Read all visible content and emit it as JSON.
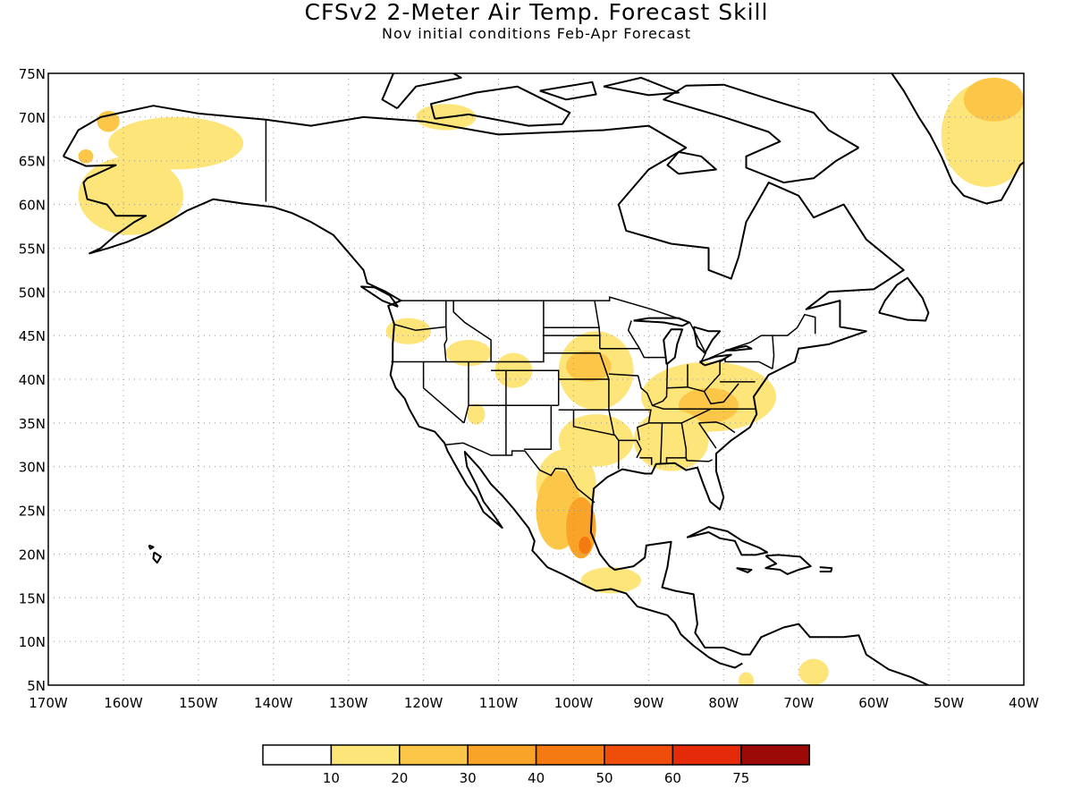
{
  "title": "CFSv2 2-Meter Air Temp. Forecast Skill",
  "subtitle": "Nov initial conditions   Feb-Apr Forecast",
  "lat_labels": [
    "75N",
    "70N",
    "65N",
    "60N",
    "55N",
    "50N",
    "45N",
    "40N",
    "35N",
    "30N",
    "25N",
    "20N",
    "15N",
    "10N",
    "5N"
  ],
  "lon_labels": [
    "170W",
    "160W",
    "150W",
    "140W",
    "130W",
    "120W",
    "110W",
    "100W",
    "90W",
    "80W",
    "70W",
    "60W",
    "50W",
    "40W"
  ],
  "map": {
    "lat_range": [
      5,
      75
    ],
    "lon_range": [
      -170,
      -40
    ],
    "gridlines": "dotted"
  },
  "colorbar": {
    "colors": [
      "#ffffff",
      "#fde57a",
      "#fcc648",
      "#f9a428",
      "#f57a12",
      "#ef4e0a",
      "#e52a0a",
      "#c21208",
      "#9b0a06"
    ],
    "labels": [
      "10",
      "20",
      "30",
      "40",
      "50",
      "60",
      "75"
    ]
  },
  "skill_regions": [
    {
      "level": 1,
      "lat": 61,
      "lon": -159,
      "rlat": 4.5,
      "rlon": 7
    },
    {
      "level": 1,
      "lat": 67,
      "lon": -153,
      "rlat": 3,
      "rlon": 9
    },
    {
      "level": 2,
      "lat": 69.5,
      "lon": -162,
      "rlat": 1.2,
      "rlon": 1.5
    },
    {
      "level": 2,
      "lat": 65.5,
      "lon": -165,
      "rlat": 0.8,
      "rlon": 1
    },
    {
      "level": 1,
      "lat": 70,
      "lon": -117,
      "rlat": 1.5,
      "rlon": 4
    },
    {
      "level": 1,
      "lat": 45.5,
      "lon": -122,
      "rlat": 1.5,
      "rlon": 3
    },
    {
      "level": 1,
      "lat": 43,
      "lon": -114,
      "rlat": 1.5,
      "rlon": 3
    },
    {
      "level": 1,
      "lat": 41,
      "lon": -108,
      "rlat": 2,
      "rlon": 2.5
    },
    {
      "level": 1,
      "lat": 41,
      "lon": -97,
      "rlat": 4.5,
      "rlon": 5
    },
    {
      "level": 2,
      "lat": 41.5,
      "lon": -98,
      "rlat": 1.8,
      "rlon": 3
    },
    {
      "level": 1,
      "lat": 38,
      "lon": -82,
      "rlat": 4,
      "rlon": 9
    },
    {
      "level": 2,
      "lat": 37,
      "lon": -82,
      "rlat": 2,
      "rlon": 4
    },
    {
      "level": 1,
      "lat": 33,
      "lon": -87,
      "rlat": 3.5,
      "rlon": 5
    },
    {
      "level": 1,
      "lat": 33,
      "lon": -97,
      "rlat": 3,
      "rlon": 5
    },
    {
      "level": 1,
      "lat": 28,
      "lon": -101,
      "rlat": 4,
      "rlon": 4
    },
    {
      "level": 2,
      "lat": 25,
      "lon": -102,
      "rlat": 4.5,
      "rlon": 3
    },
    {
      "level": 3,
      "lat": 23,
      "lon": -99,
      "rlat": 3.5,
      "rlon": 2
    },
    {
      "level": 4,
      "lat": 21,
      "lon": -98.5,
      "rlat": 1,
      "rlon": 0.8
    },
    {
      "level": 1,
      "lat": 17,
      "lon": -95,
      "rlat": 1.5,
      "rlon": 4
    },
    {
      "level": 1,
      "lat": 68,
      "lon": -45,
      "rlat": 6,
      "rlon": 6
    },
    {
      "level": 2,
      "lat": 72,
      "lon": -44,
      "rlat": 2.5,
      "rlon": 4
    },
    {
      "level": 1,
      "lat": 6.5,
      "lon": -68,
      "rlat": 1.5,
      "rlon": 2
    },
    {
      "level": 1,
      "lat": 5.5,
      "lon": -77,
      "rlat": 1,
      "rlon": 1
    },
    {
      "level": 1,
      "lat": 36,
      "lon": -113,
      "rlat": 1.2,
      "rlon": 1.2
    }
  ]
}
